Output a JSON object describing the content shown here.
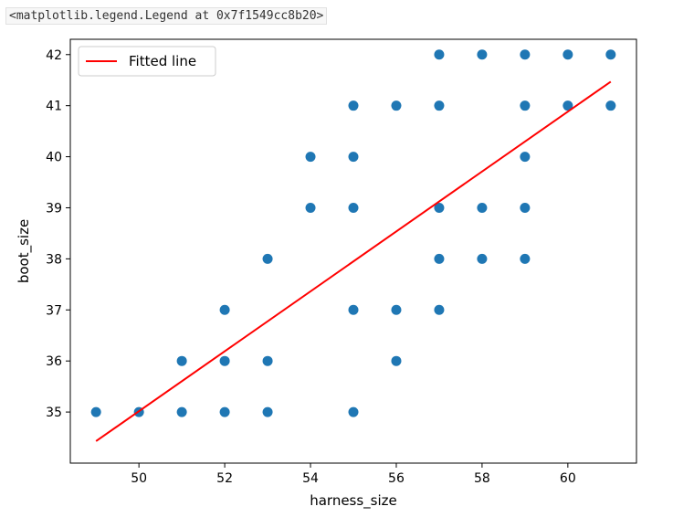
{
  "output_repr": "<matplotlib.legend.Legend at 0x7f1549cc8b20>",
  "chart_data": {
    "type": "scatter",
    "title": "",
    "xlabel": "harness_size",
    "ylabel": "boot_size",
    "xlim": [
      48.4,
      61.6
    ],
    "ylim": [
      34.0,
      42.3
    ],
    "xticks": [
      50,
      52,
      54,
      56,
      58,
      60
    ],
    "yticks": [
      35,
      36,
      37,
      38,
      39,
      40,
      41,
      42
    ],
    "grid": false,
    "legend": {
      "placement": "upper-left",
      "entries": [
        "Fitted line"
      ]
    },
    "points": [
      [
        49,
        35
      ],
      [
        50,
        35
      ],
      [
        51,
        35
      ],
      [
        51,
        36
      ],
      [
        52,
        35
      ],
      [
        52,
        36
      ],
      [
        52,
        37
      ],
      [
        53,
        35
      ],
      [
        53,
        36
      ],
      [
        53,
        38
      ],
      [
        54,
        39
      ],
      [
        54,
        40
      ],
      [
        55,
        35
      ],
      [
        55,
        37
      ],
      [
        55,
        39
      ],
      [
        55,
        40
      ],
      [
        55,
        41
      ],
      [
        56,
        36
      ],
      [
        56,
        37
      ],
      [
        56,
        41
      ],
      [
        57,
        37
      ],
      [
        57,
        38
      ],
      [
        57,
        39
      ],
      [
        57,
        41
      ],
      [
        57,
        42
      ],
      [
        58,
        38
      ],
      [
        58,
        39
      ],
      [
        58,
        42
      ],
      [
        59,
        38
      ],
      [
        59,
        39
      ],
      [
        59,
        40
      ],
      [
        59,
        41
      ],
      [
        59,
        42
      ],
      [
        60,
        41
      ],
      [
        60,
        42
      ],
      [
        61,
        41
      ],
      [
        61,
        42
      ]
    ],
    "fitted_line": {
      "name": "Fitted line",
      "x": [
        49,
        61
      ],
      "y": [
        34.43,
        41.47
      ]
    },
    "colors": {
      "points": "#1f77b4",
      "line": "#ff0000",
      "axes": "#000000"
    }
  }
}
